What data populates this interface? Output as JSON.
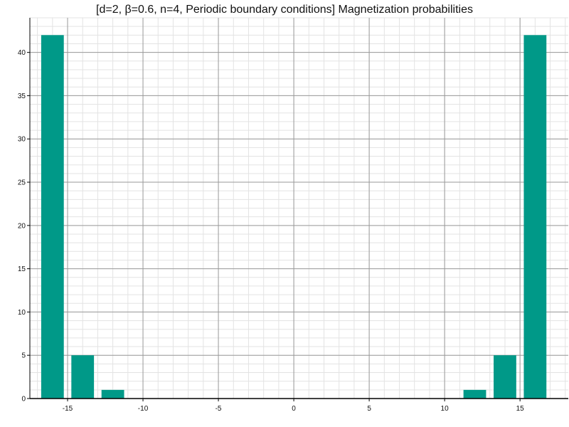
{
  "chart_data": {
    "type": "bar",
    "title": "[d=2, β=0.6, n=4, Periodic boundary conditions] Magnetization probabilities",
    "xlabel": "",
    "ylabel": "",
    "x": [
      -16,
      -14,
      -12,
      -10,
      -8,
      -6,
      -4,
      -2,
      0,
      2,
      4,
      6,
      8,
      10,
      12,
      14,
      16
    ],
    "values": [
      42,
      5,
      1,
      0,
      0,
      0,
      0,
      0,
      0,
      0,
      0,
      0,
      0,
      0,
      1,
      5,
      42
    ],
    "xlim": [
      -17.5,
      18.2
    ],
    "ylim": [
      0,
      44
    ],
    "xticks": [
      -15,
      -10,
      -5,
      0,
      5,
      10,
      15
    ],
    "yticks": [
      0,
      5,
      10,
      15,
      20,
      25,
      30,
      35,
      40
    ],
    "xtick_labels": [
      "-15",
      "-10",
      "-5",
      "0",
      "5",
      "10",
      "15"
    ],
    "ytick_labels": [
      "0",
      "5",
      "10",
      "15",
      "20",
      "25",
      "30",
      "35",
      "40"
    ],
    "grid": true,
    "bar_color": "#009988",
    "bar_width": 1.5
  }
}
